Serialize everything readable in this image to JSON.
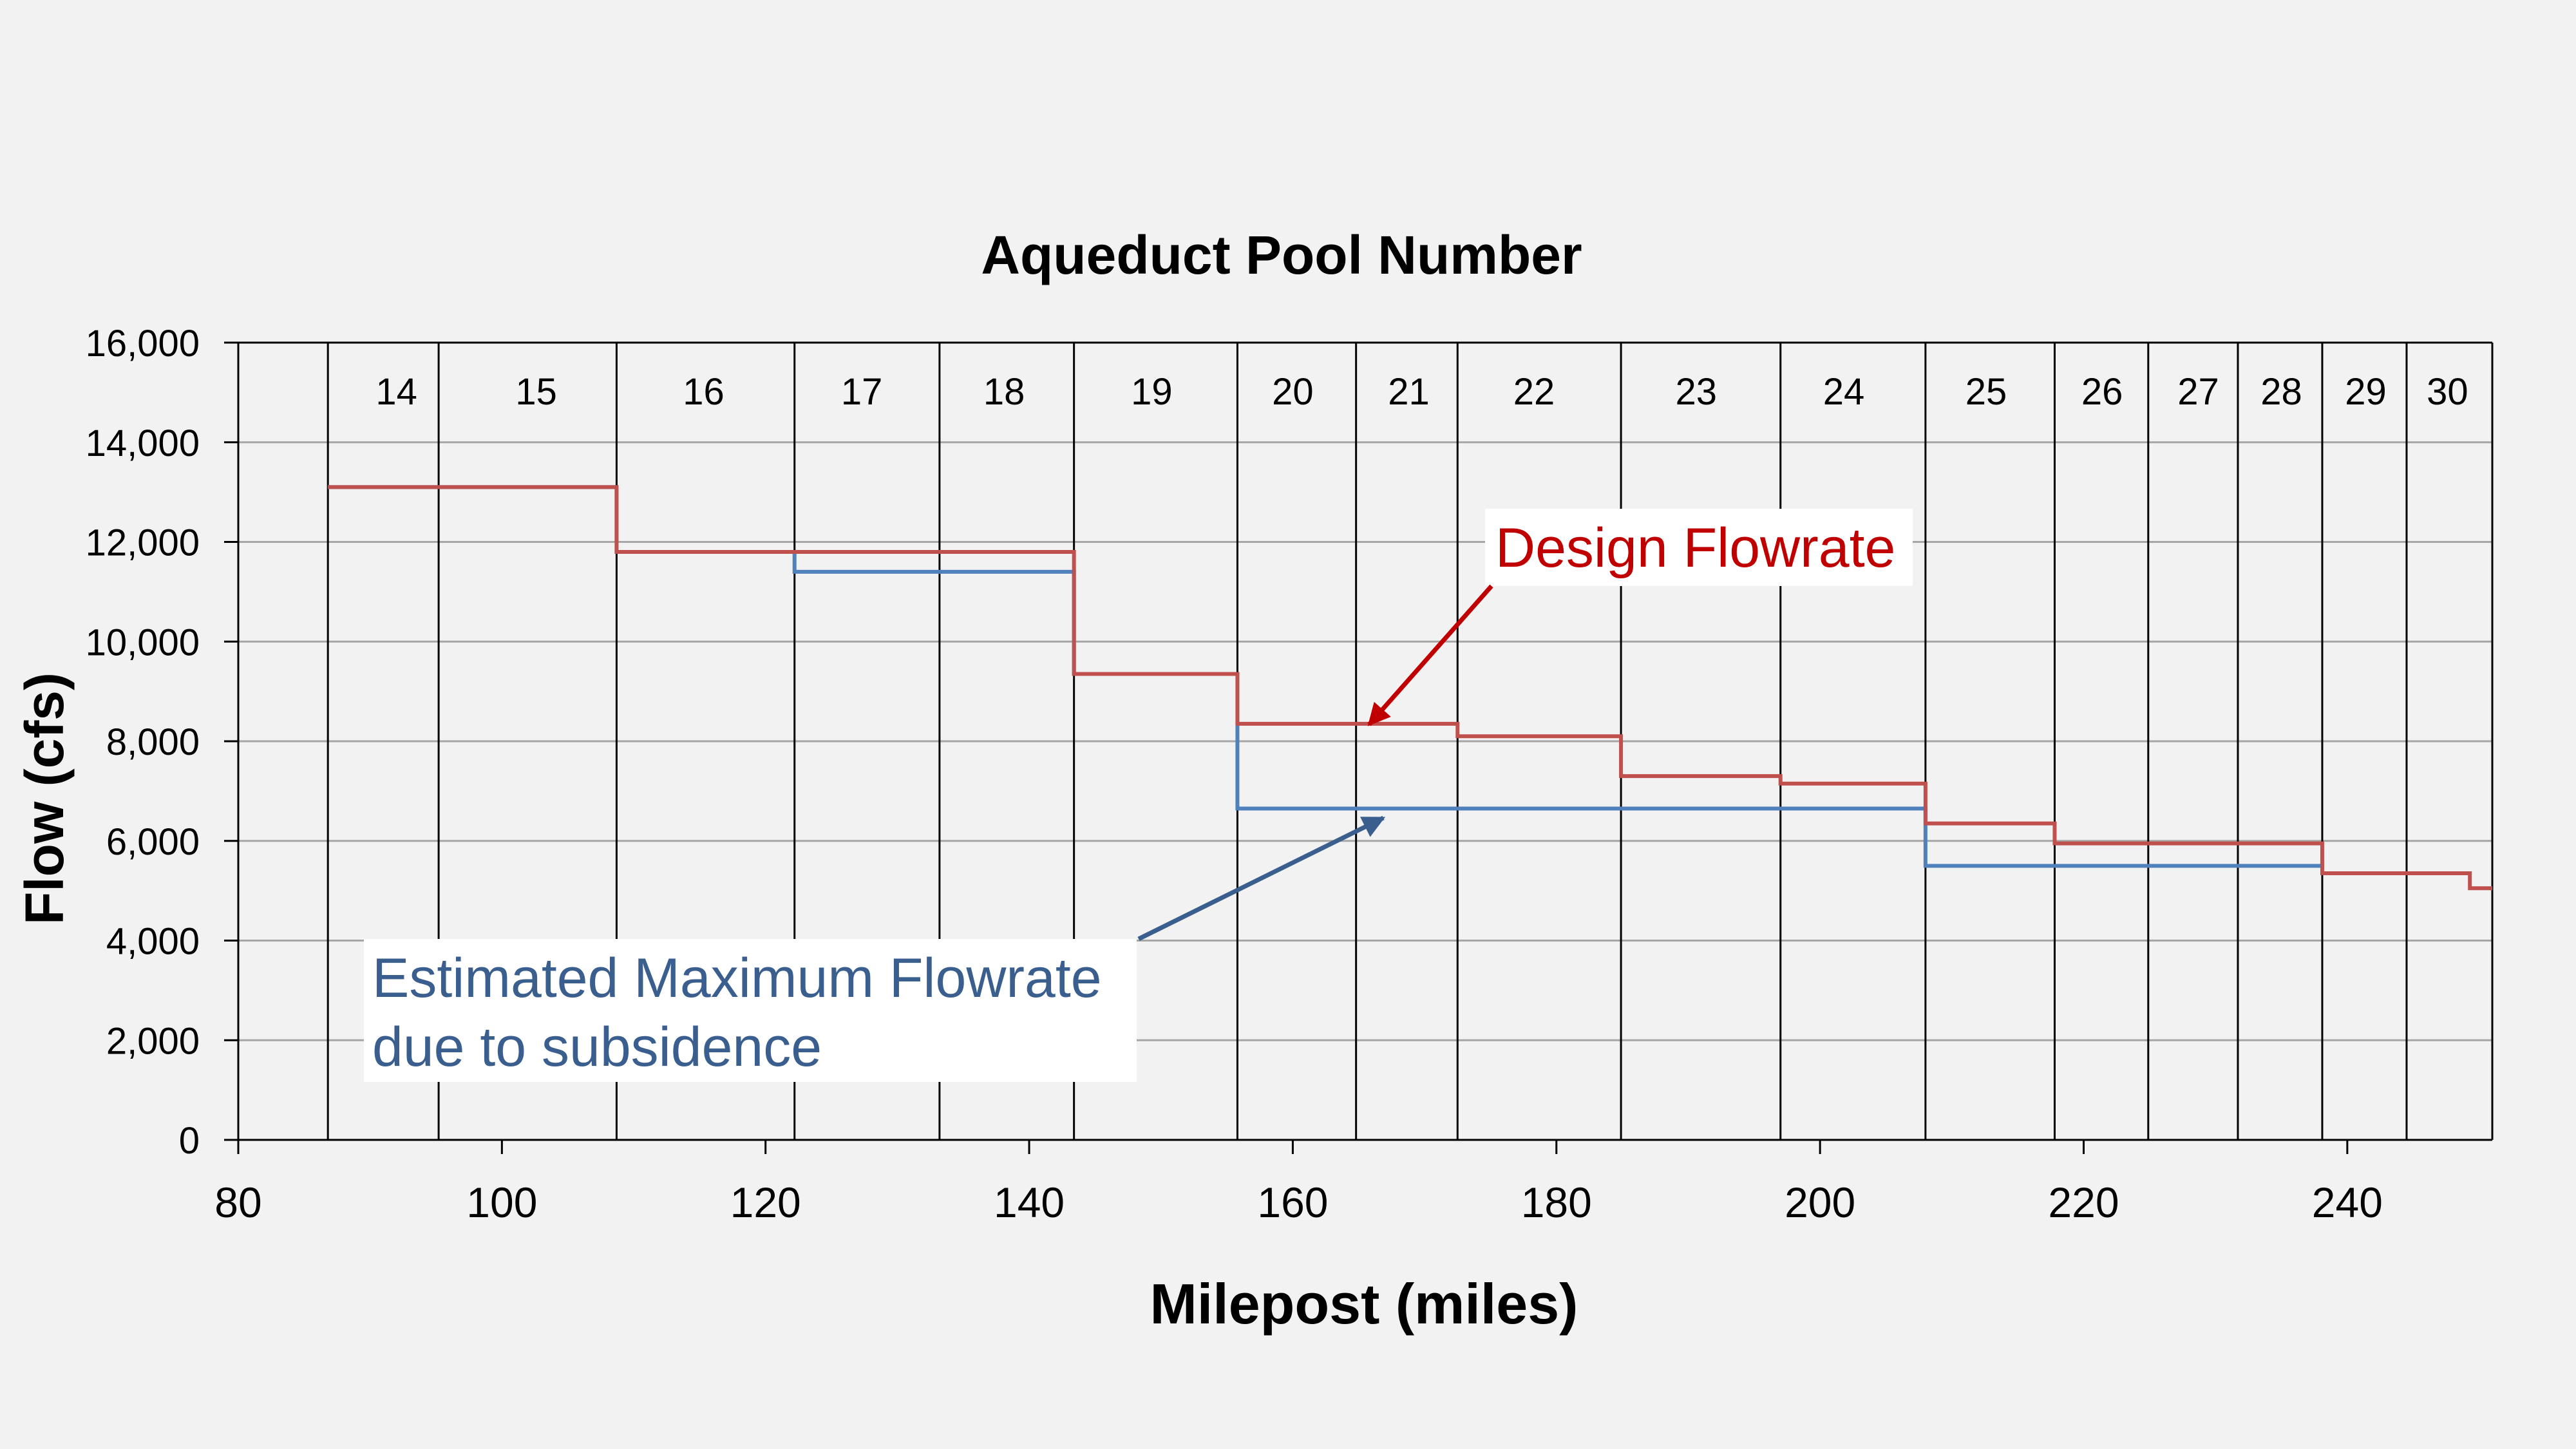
{
  "colors": {
    "background": "#f2f2f2",
    "design": "#c0504d",
    "estimated": "#4f81bd",
    "design_text": "#c00000",
    "estimated_text": "#3a5f8f",
    "design_arrow": "#c00000",
    "estimated_arrow": "#3a5f8f",
    "grid": "#a6a6a6"
  },
  "chart_data": {
    "type": "line",
    "step": true,
    "top_axis_title": "Aqueduct Pool Number",
    "xlabel": "Milepost (miles)",
    "ylabel": "Flow (cfs)",
    "xlim": [
      80,
      251
    ],
    "ylim": [
      0,
      16000
    ],
    "x_ticks": [
      "80",
      "100",
      "120",
      "140",
      "160",
      "180",
      "200",
      "220",
      "240"
    ],
    "x_tick_values": [
      80,
      100,
      120,
      140,
      160,
      180,
      200,
      220,
      240
    ],
    "y_ticks": [
      "0",
      "2,000",
      "4,000",
      "6,000",
      "8,000",
      "10,000",
      "12,000",
      "14,000",
      "16,000"
    ],
    "y_tick_values": [
      0,
      2000,
      4000,
      6000,
      8000,
      10000,
      12000,
      14000,
      16000
    ],
    "horizontal_grid": true,
    "pool_boundaries": [
      86.8,
      95.2,
      108.7,
      122.2,
      133.2,
      143.4,
      155.8,
      164.8,
      172.5,
      184.9,
      197.0,
      208.0,
      217.8,
      224.9,
      231.7,
      238.1,
      244.5,
      251
    ],
    "pools": [
      {
        "label": "14",
        "x": 92.0
      },
      {
        "label": "15",
        "x": 102.6
      },
      {
        "label": "16",
        "x": 115.3
      },
      {
        "label": "17",
        "x": 127.3
      },
      {
        "label": "18",
        "x": 138.1
      },
      {
        "label": "19",
        "x": 149.3
      },
      {
        "label": "20",
        "x": 160.0
      },
      {
        "label": "21",
        "x": 168.8
      },
      {
        "label": "22",
        "x": 178.3
      },
      {
        "label": "23",
        "x": 190.6
      },
      {
        "label": "24",
        "x": 201.8
      },
      {
        "label": "25",
        "x": 212.6
      },
      {
        "label": "26",
        "x": 221.4
      },
      {
        "label": "27",
        "x": 228.7
      },
      {
        "label": "28",
        "x": 235.0
      },
      {
        "label": "29",
        "x": 241.4
      },
      {
        "label": "30",
        "x": 247.6
      }
    ],
    "series": [
      {
        "name": "Design Flowrate",
        "x": [
          86.8,
          108.7,
          143.4,
          155.8,
          172.5,
          184.9,
          197.0,
          208.0,
          217.8,
          238.1,
          249.3,
          251
        ],
        "values": [
          13100,
          11800,
          9350,
          8350,
          8100,
          7300,
          7150,
          6350,
          5950,
          5350,
          5050,
          5050
        ]
      },
      {
        "name": "Estimated Maximum Flowrate due to subsidence",
        "x": [
          86.8,
          108.7,
          122.2,
          143.4,
          155.8,
          208.0,
          238.1
        ],
        "values": [
          13100,
          11800,
          11400,
          9350,
          6650,
          5500,
          5500
        ]
      }
    ],
    "annotations": [
      {
        "text": "Design Flowrate",
        "series": "Design Flowrate",
        "point_x": 166.0,
        "point_y": 8300
      },
      {
        "text_lines": [
          "Estimated Maximum Flowrate",
          "due to subsidence"
        ],
        "series": "Estimated Maximum Flowrate due to subsidence",
        "point_x": 167.5,
        "point_y": 6500
      }
    ]
  }
}
